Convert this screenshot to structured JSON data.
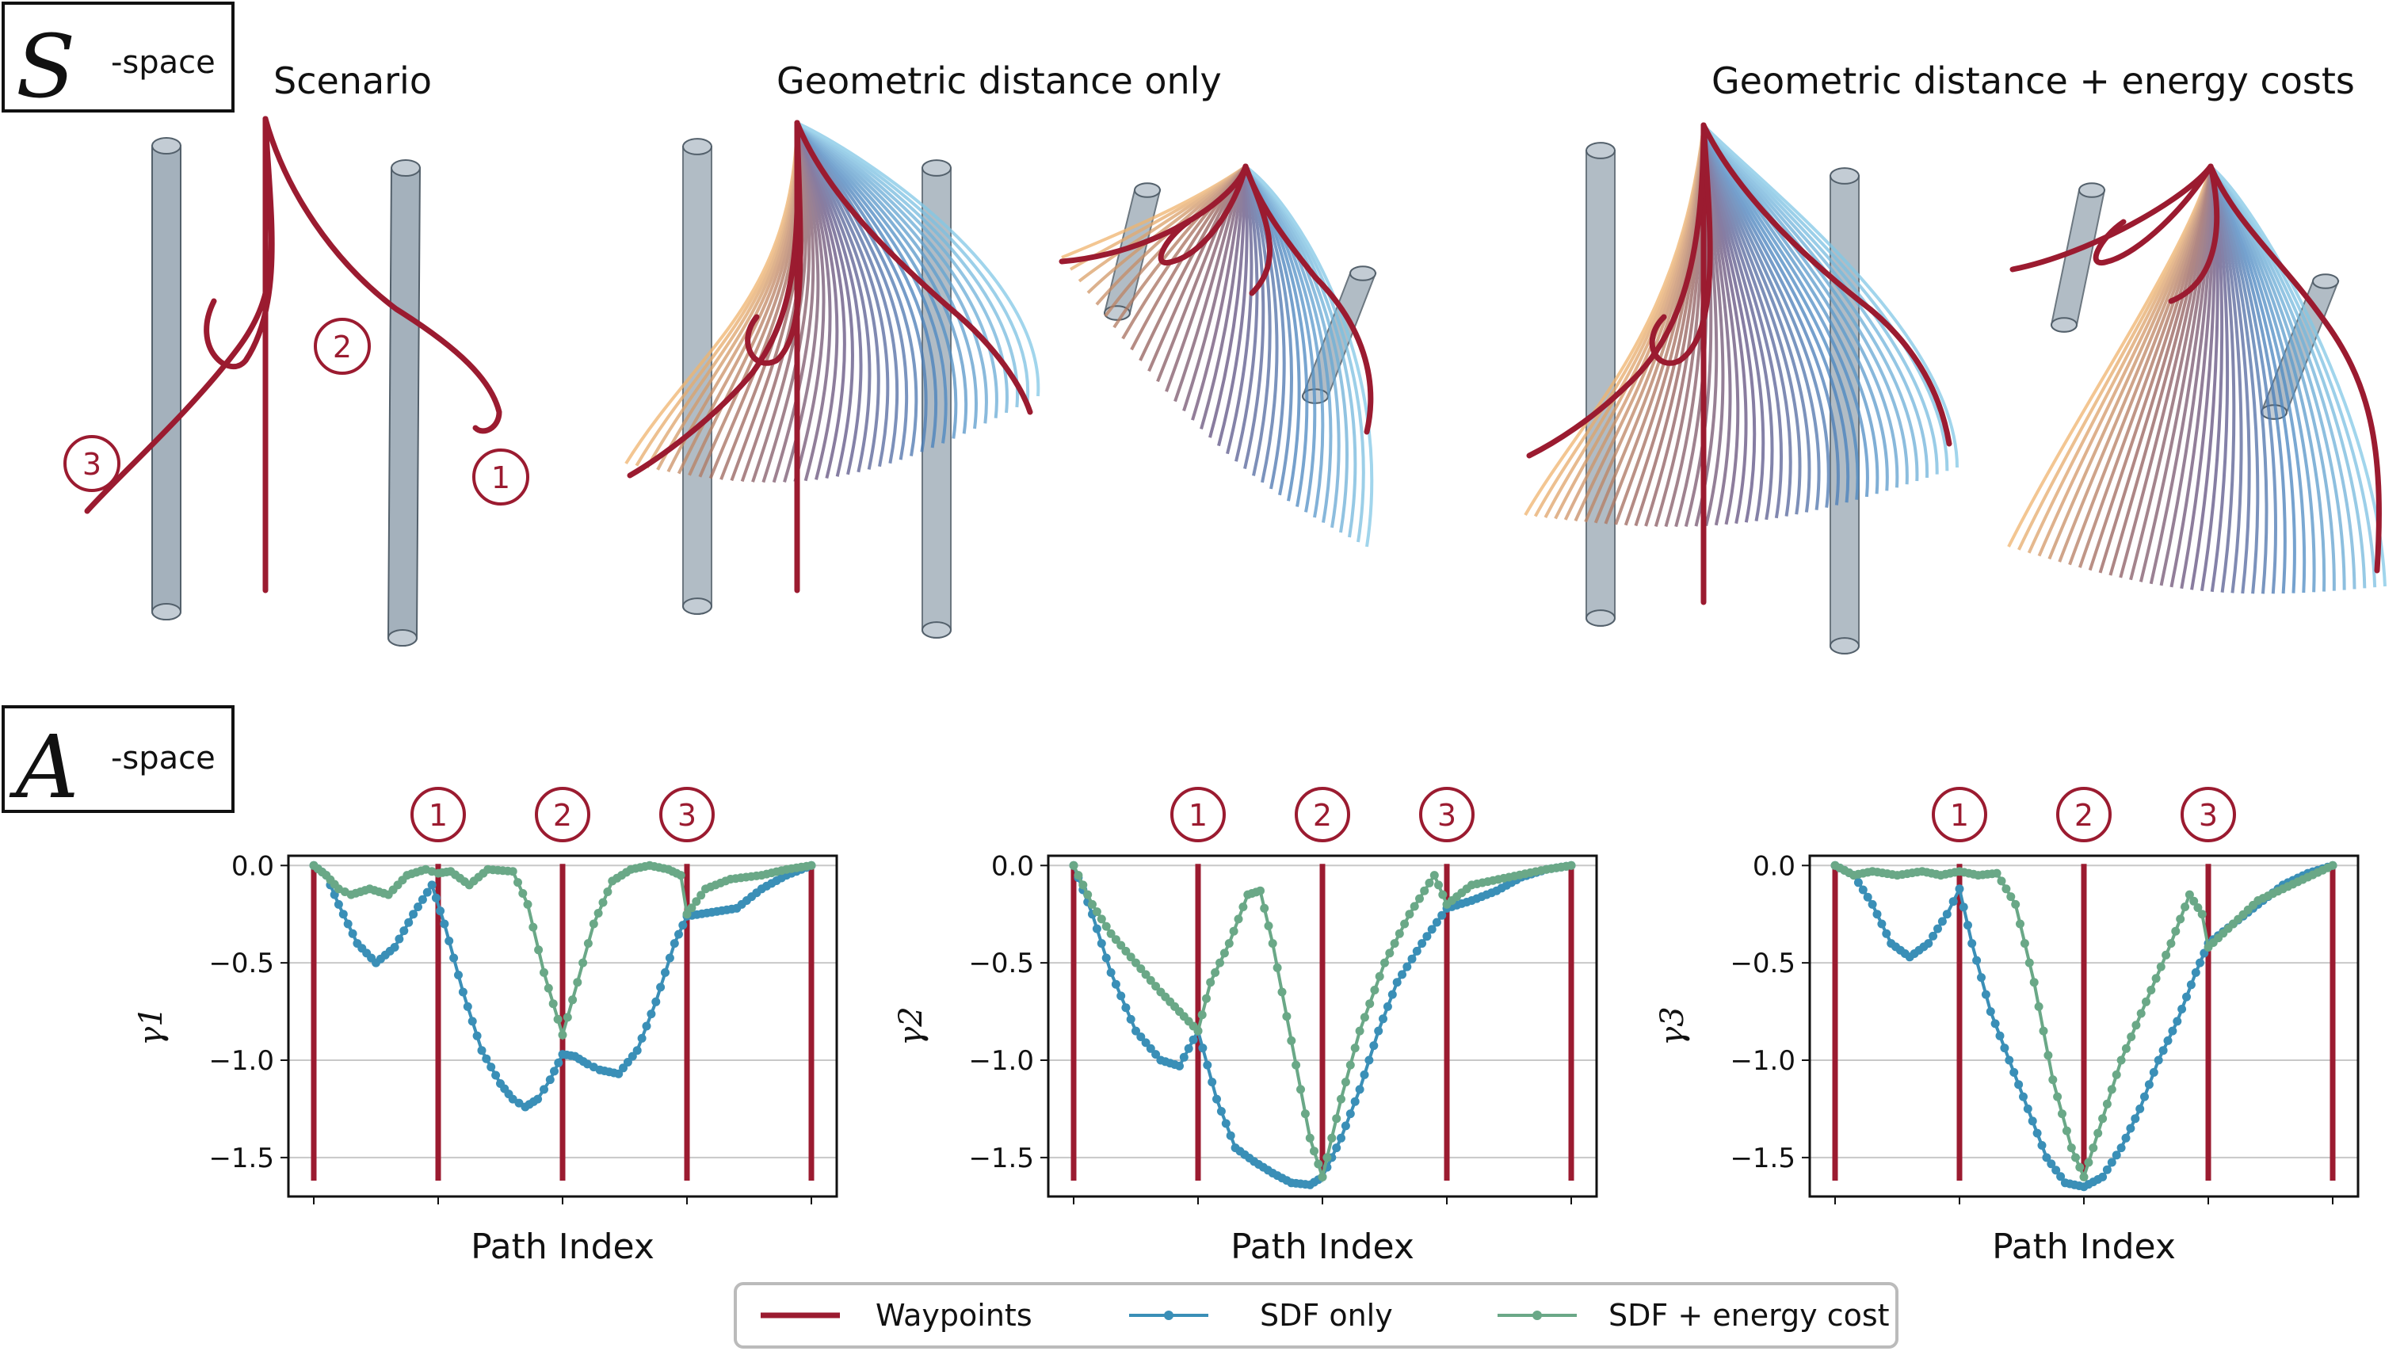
{
  "header": {
    "s_space": {
      "symbol": "S",
      "suffix": "-space"
    },
    "a_space": {
      "symbol": "A",
      "suffix": "-space"
    }
  },
  "panels": {
    "scenario": "Scenario",
    "geo": "Geometric distance only",
    "geo_energy": "Geometric distance + energy costs"
  },
  "waypoint_markers": [
    "1",
    "2",
    "3"
  ],
  "colors": {
    "waypoint": "#9b1b30",
    "sdf": "#3a8fb7",
    "energy": "#6aa887",
    "obstacle": "#a4b1bc",
    "grid": "#c8c8c8"
  },
  "legend": {
    "waypoints": "Waypoints",
    "sdf": "SDF only",
    "energy": "SDF + energy cost"
  },
  "chart_data": [
    {
      "type": "line",
      "xlabel": "Path Index",
      "ylabel": "γ1",
      "ylim": [
        -1.7,
        0.05
      ],
      "yticks": [
        0.0,
        -0.5,
        -1.0,
        -1.5
      ],
      "ytick_labels": [
        "0.0",
        "−0.5",
        "−1.0",
        "−1.5"
      ],
      "waypoints": [
        0,
        1,
        2,
        3,
        4
      ],
      "series": [
        {
          "key": "sdf",
          "name": "SDF only",
          "points": [
            [
              0,
              0
            ],
            [
              0.1,
              -0.05
            ],
            [
              0.2,
              -0.2
            ],
            [
              0.35,
              -0.4
            ],
            [
              0.5,
              -0.5
            ],
            [
              0.65,
              -0.42
            ],
            [
              0.8,
              -0.25
            ],
            [
              0.95,
              -0.1
            ],
            [
              1.05,
              -0.3
            ],
            [
              1.2,
              -0.65
            ],
            [
              1.35,
              -0.95
            ],
            [
              1.5,
              -1.12
            ],
            [
              1.6,
              -1.2
            ],
            [
              1.7,
              -1.24
            ],
            [
              1.8,
              -1.2
            ],
            [
              1.9,
              -1.1
            ],
            [
              2.0,
              -0.97
            ],
            [
              2.1,
              -0.98
            ],
            [
              2.2,
              -1.02
            ],
            [
              2.3,
              -1.05
            ],
            [
              2.45,
              -1.07
            ],
            [
              2.6,
              -0.95
            ],
            [
              2.75,
              -0.7
            ],
            [
              2.9,
              -0.4
            ],
            [
              3.0,
              -0.26
            ],
            [
              3.2,
              -0.24
            ],
            [
              3.4,
              -0.22
            ],
            [
              3.6,
              -0.12
            ],
            [
              3.8,
              -0.05
            ],
            [
              4.0,
              0
            ]
          ]
        },
        {
          "key": "energy",
          "name": "SDF + energy cost",
          "points": [
            [
              0,
              0
            ],
            [
              0.1,
              -0.05
            ],
            [
              0.2,
              -0.12
            ],
            [
              0.3,
              -0.15
            ],
            [
              0.45,
              -0.12
            ],
            [
              0.6,
              -0.15
            ],
            [
              0.75,
              -0.05
            ],
            [
              0.9,
              -0.02
            ],
            [
              1.0,
              -0.04
            ],
            [
              1.1,
              -0.03
            ],
            [
              1.25,
              -0.1
            ],
            [
              1.4,
              -0.02
            ],
            [
              1.6,
              -0.03
            ],
            [
              1.72,
              -0.2
            ],
            [
              1.85,
              -0.55
            ],
            [
              2.0,
              -0.87
            ],
            [
              2.12,
              -0.6
            ],
            [
              2.25,
              -0.3
            ],
            [
              2.4,
              -0.08
            ],
            [
              2.55,
              -0.02
            ],
            [
              2.7,
              0
            ],
            [
              2.85,
              -0.02
            ],
            [
              2.95,
              -0.05
            ],
            [
              3.0,
              -0.25
            ],
            [
              3.15,
              -0.12
            ],
            [
              3.35,
              -0.07
            ],
            [
              3.6,
              -0.05
            ],
            [
              3.8,
              -0.02
            ],
            [
              4.0,
              0
            ]
          ]
        }
      ]
    },
    {
      "type": "line",
      "xlabel": "Path Index",
      "ylabel": "γ2",
      "ylim": [
        -1.7,
        0.05
      ],
      "yticks": [
        0.0,
        -0.5,
        -1.0,
        -1.5
      ],
      "ytick_labels": [
        "0.0",
        "−0.5",
        "−1.0",
        "−1.5"
      ],
      "waypoints": [
        0,
        1,
        2,
        3,
        4
      ],
      "series": [
        {
          "key": "sdf",
          "name": "SDF only",
          "points": [
            [
              0,
              0
            ],
            [
              0.15,
              -0.25
            ],
            [
              0.3,
              -0.55
            ],
            [
              0.5,
              -0.85
            ],
            [
              0.7,
              -1.0
            ],
            [
              0.85,
              -1.03
            ],
            [
              1.0,
              -0.85
            ],
            [
              1.15,
              -1.2
            ],
            [
              1.3,
              -1.45
            ],
            [
              1.45,
              -1.52
            ],
            [
              1.6,
              -1.58
            ],
            [
              1.75,
              -1.63
            ],
            [
              1.9,
              -1.64
            ],
            [
              2.0,
              -1.6
            ],
            [
              2.15,
              -1.4
            ],
            [
              2.3,
              -1.15
            ],
            [
              2.45,
              -0.85
            ],
            [
              2.6,
              -0.6
            ],
            [
              2.8,
              -0.4
            ],
            [
              3.0,
              -0.22
            ],
            [
              3.2,
              -0.18
            ],
            [
              3.4,
              -0.13
            ],
            [
              3.6,
              -0.06
            ],
            [
              3.8,
              -0.02
            ],
            [
              4.0,
              0
            ]
          ]
        },
        {
          "key": "energy",
          "name": "SDF + energy cost",
          "points": [
            [
              0,
              0
            ],
            [
              0.15,
              -0.2
            ],
            [
              0.3,
              -0.35
            ],
            [
              0.5,
              -0.5
            ],
            [
              0.7,
              -0.65
            ],
            [
              0.85,
              -0.75
            ],
            [
              1.0,
              -0.85
            ],
            [
              1.1,
              -0.6
            ],
            [
              1.25,
              -0.4
            ],
            [
              1.4,
              -0.15
            ],
            [
              1.5,
              -0.13
            ],
            [
              1.6,
              -0.4
            ],
            [
              1.75,
              -0.9
            ],
            [
              1.9,
              -1.4
            ],
            [
              2.0,
              -1.6
            ],
            [
              2.15,
              -1.2
            ],
            [
              2.3,
              -0.85
            ],
            [
              2.5,
              -0.5
            ],
            [
              2.7,
              -0.25
            ],
            [
              2.9,
              -0.05
            ],
            [
              3.0,
              -0.2
            ],
            [
              3.2,
              -0.1
            ],
            [
              3.5,
              -0.06
            ],
            [
              3.8,
              -0.02
            ],
            [
              4.0,
              0
            ]
          ]
        }
      ]
    },
    {
      "type": "line",
      "xlabel": "Path Index",
      "ylabel": "γ3",
      "ylim": [
        -1.7,
        0.05
      ],
      "yticks": [
        0.0,
        -0.5,
        -1.0,
        -1.5
      ],
      "ytick_labels": [
        "0.0",
        "−0.5",
        "−1.0",
        "−1.5"
      ],
      "waypoints": [
        0,
        1,
        2,
        3,
        4
      ],
      "series": [
        {
          "key": "sdf",
          "name": "SDF only",
          "points": [
            [
              0,
              0
            ],
            [
              0.15,
              -0.05
            ],
            [
              0.3,
              -0.2
            ],
            [
              0.45,
              -0.4
            ],
            [
              0.6,
              -0.47
            ],
            [
              0.75,
              -0.4
            ],
            [
              0.9,
              -0.25
            ],
            [
              1.0,
              -0.12
            ],
            [
              1.1,
              -0.4
            ],
            [
              1.25,
              -0.75
            ],
            [
              1.4,
              -1.0
            ],
            [
              1.55,
              -1.25
            ],
            [
              1.7,
              -1.5
            ],
            [
              1.85,
              -1.63
            ],
            [
              2.0,
              -1.65
            ],
            [
              2.15,
              -1.6
            ],
            [
              2.3,
              -1.45
            ],
            [
              2.45,
              -1.25
            ],
            [
              2.6,
              -1.0
            ],
            [
              2.75,
              -0.8
            ],
            [
              2.9,
              -0.55
            ],
            [
              3.0,
              -0.4
            ],
            [
              3.2,
              -0.3
            ],
            [
              3.4,
              -0.2
            ],
            [
              3.6,
              -0.1
            ],
            [
              3.8,
              -0.04
            ],
            [
              4.0,
              0
            ]
          ]
        },
        {
          "key": "energy",
          "name": "SDF + energy cost",
          "points": [
            [
              0,
              0
            ],
            [
              0.15,
              -0.05
            ],
            [
              0.3,
              -0.03
            ],
            [
              0.5,
              -0.05
            ],
            [
              0.7,
              -0.03
            ],
            [
              0.85,
              -0.05
            ],
            [
              1.0,
              -0.03
            ],
            [
              1.15,
              -0.05
            ],
            [
              1.3,
              -0.04
            ],
            [
              1.45,
              -0.2
            ],
            [
              1.6,
              -0.6
            ],
            [
              1.75,
              -1.1
            ],
            [
              1.9,
              -1.45
            ],
            [
              2.0,
              -1.6
            ],
            [
              2.15,
              -1.3
            ],
            [
              2.3,
              -1.0
            ],
            [
              2.5,
              -0.7
            ],
            [
              2.7,
              -0.4
            ],
            [
              2.85,
              -0.15
            ],
            [
              2.95,
              -0.25
            ],
            [
              3.0,
              -0.42
            ],
            [
              3.2,
              -0.3
            ],
            [
              3.4,
              -0.18
            ],
            [
              3.6,
              -0.12
            ],
            [
              3.8,
              -0.06
            ],
            [
              4.0,
              0
            ]
          ]
        }
      ]
    }
  ]
}
